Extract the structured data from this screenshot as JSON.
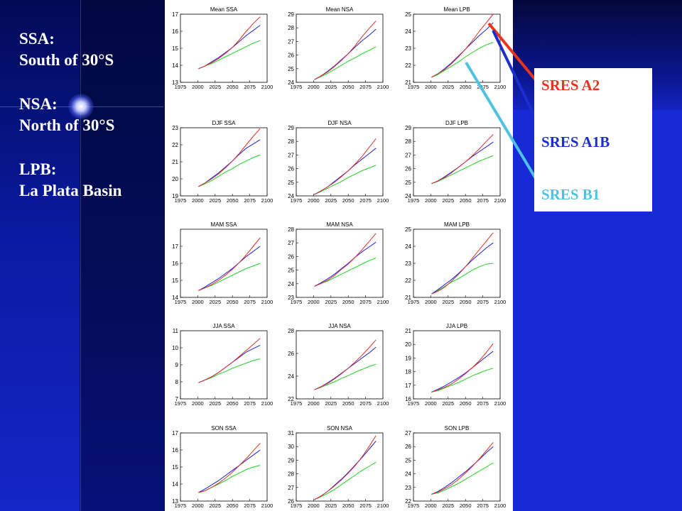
{
  "definitions": [
    {
      "code": "SSA:",
      "meaning": "South of 30°S"
    },
    {
      "code": "NSA:",
      "meaning": "North of 30°S"
    },
    {
      "code": "LPB:",
      "meaning": "La Plata Basin"
    }
  ],
  "legend": [
    {
      "label": "SRES A2",
      "color": "#e8341c"
    },
    {
      "label": "SRES A1B",
      "color": "#1b2fd0"
    },
    {
      "label": "SRES B1",
      "color": "#4ec3e0"
    }
  ],
  "chart_data": {
    "type": "line",
    "x_ticks": [
      1975,
      2000,
      2025,
      2050,
      2075,
      2100
    ],
    "x_tick_labels": [
      "1975",
      "2000",
      "2025",
      "2050",
      "2075",
      "2100"
    ],
    "x": [
      2001,
      2010,
      2020,
      2030,
      2040,
      2050,
      2060,
      2070,
      2080,
      2090
    ],
    "series_colors": {
      "SRES A2": "#e03030",
      "SRES A1B": "#2020e0",
      "SRES B1": "#20d020"
    },
    "panels": [
      {
        "title": "Mean SSA",
        "ylim": [
          13,
          17
        ],
        "yticks": [
          13,
          14,
          15,
          16,
          17
        ],
        "series": [
          {
            "values": [
              13.8,
              13.95,
              14.15,
              14.4,
              14.7,
              15.05,
              15.5,
              16.0,
              16.45,
              16.85
            ]
          },
          {
            "values": [
              13.8,
              13.95,
              14.2,
              14.45,
              14.75,
              15.05,
              15.4,
              15.75,
              16.05,
              16.35
            ]
          },
          {
            "values": [
              13.8,
              13.95,
              14.1,
              14.3,
              14.5,
              14.7,
              14.9,
              15.1,
              15.3,
              15.45
            ]
          }
        ]
      },
      {
        "title": "Mean NSA",
        "ylim": [
          24,
          29
        ],
        "yticks": [
          24,
          25,
          26,
          27,
          28,
          29
        ],
        "series": [
          {
            "values": [
              24.2,
              24.45,
              24.75,
              25.15,
              25.6,
              26.1,
              26.7,
              27.35,
              27.95,
              28.5
            ]
          },
          {
            "values": [
              24.2,
              24.45,
              24.8,
              25.2,
              25.65,
              26.1,
              26.6,
              27.05,
              27.45,
              27.9
            ]
          },
          {
            "values": [
              24.2,
              24.4,
              24.65,
              24.95,
              25.25,
              25.55,
              25.8,
              26.1,
              26.35,
              26.6
            ]
          }
        ]
      },
      {
        "title": "Mean LPB",
        "ylim": [
          21,
          25
        ],
        "yticks": [
          21,
          22,
          23,
          24,
          25
        ],
        "series": [
          {
            "values": [
              21.3,
              21.5,
              21.75,
              22.1,
              22.5,
              22.95,
              23.45,
              24.0,
              24.5,
              25.0
            ]
          },
          {
            "values": [
              21.3,
              21.5,
              21.8,
              22.15,
              22.55,
              22.95,
              23.35,
              23.75,
              24.1,
              24.5
            ]
          },
          {
            "values": [
              21.3,
              21.45,
              21.7,
              21.95,
              22.2,
              22.5,
              22.75,
              23.0,
              23.2,
              23.35
            ]
          }
        ]
      },
      {
        "title": "DJF SSA",
        "ylim": [
          19,
          23
        ],
        "yticks": [
          19,
          20,
          21,
          22,
          23
        ],
        "series": [
          {
            "values": [
              19.55,
              19.75,
              20.0,
              20.3,
              20.65,
              21.05,
              21.5,
              22.0,
              22.5,
              22.95
            ]
          },
          {
            "values": [
              19.55,
              19.75,
              20.05,
              20.35,
              20.7,
              21.05,
              21.45,
              21.8,
              22.05,
              22.3
            ]
          },
          {
            "values": [
              19.55,
              19.7,
              19.9,
              20.15,
              20.4,
              20.6,
              20.85,
              21.05,
              21.25,
              21.4
            ]
          }
        ]
      },
      {
        "title": "DJF NSA",
        "ylim": [
          24,
          29
        ],
        "yticks": [
          24,
          25,
          26,
          27,
          28,
          29
        ],
        "series": [
          {
            "values": [
              24.1,
              24.35,
              24.65,
              25.0,
              25.4,
              25.85,
              26.35,
              26.9,
              27.55,
              28.2
            ]
          },
          {
            "values": [
              24.1,
              24.35,
              24.65,
              25.05,
              25.45,
              25.85,
              26.3,
              26.7,
              27.1,
              27.5
            ]
          },
          {
            "values": [
              24.1,
              24.3,
              24.55,
              24.8,
              25.05,
              25.35,
              25.6,
              25.85,
              26.05,
              26.25
            ]
          }
        ]
      },
      {
        "title": "DJF LPB",
        "ylim": [
          24,
          29
        ],
        "yticks": [
          24,
          25,
          26,
          27,
          28,
          29
        ],
        "series": [
          {
            "values": [
              24.9,
              25.1,
              25.35,
              25.7,
              26.1,
              26.5,
              26.95,
              27.45,
              28.0,
              28.5
            ]
          },
          {
            "values": [
              24.9,
              25.1,
              25.4,
              25.75,
              26.1,
              26.5,
              26.9,
              27.25,
              27.6,
              27.95
            ]
          },
          {
            "values": [
              24.9,
              25.05,
              25.3,
              25.55,
              25.8,
              26.05,
              26.3,
              26.55,
              26.75,
              26.95
            ]
          }
        ]
      },
      {
        "title": "MAM SSA",
        "ylim": [
          14,
          18
        ],
        "yticks": [
          14,
          15,
          16,
          17
        ],
        "series": [
          {
            "values": [
              14.4,
              14.55,
              14.75,
              15.0,
              15.3,
              15.65,
              16.05,
              16.5,
              17.0,
              17.5
            ]
          },
          {
            "values": [
              14.4,
              14.6,
              14.85,
              15.1,
              15.4,
              15.7,
              16.05,
              16.4,
              16.7,
              17.0
            ]
          },
          {
            "values": [
              14.4,
              14.55,
              14.7,
              14.9,
              15.1,
              15.3,
              15.5,
              15.7,
              15.85,
              16.0
            ]
          }
        ]
      },
      {
        "title": "MAM NSA",
        "ylim": [
          23,
          28
        ],
        "yticks": [
          23,
          24,
          25,
          26,
          27,
          28
        ],
        "series": [
          {
            "values": [
              23.8,
              24.0,
              24.25,
              24.6,
              25.05,
              25.45,
              25.95,
              26.5,
              27.1,
              27.7
            ]
          },
          {
            "values": [
              23.8,
              24.05,
              24.35,
              24.7,
              25.1,
              25.5,
              25.95,
              26.35,
              26.7,
              27.05
            ]
          },
          {
            "values": [
              23.8,
              24.0,
              24.2,
              24.45,
              24.7,
              24.95,
              25.2,
              25.45,
              25.7,
              25.9
            ]
          }
        ]
      },
      {
        "title": "MAM LPB",
        "ylim": [
          21,
          25
        ],
        "yticks": [
          21,
          22,
          23,
          24,
          25
        ],
        "series": [
          {
            "values": [
              21.2,
              21.35,
              21.6,
              21.95,
              22.35,
              22.8,
              23.3,
              23.8,
              24.3,
              24.8
            ]
          },
          {
            "values": [
              21.2,
              21.45,
              21.75,
              22.05,
              22.4,
              22.8,
              23.2,
              23.55,
              23.9,
              24.2
            ]
          },
          {
            "values": [
              21.2,
              21.4,
              21.65,
              21.9,
              22.1,
              22.35,
              22.6,
              22.8,
              22.95,
              23.0
            ]
          }
        ]
      },
      {
        "title": "JJA SSA",
        "ylim": [
          7,
          11
        ],
        "yticks": [
          7,
          8,
          9,
          10,
          11
        ],
        "series": [
          {
            "values": [
              7.95,
              8.1,
              8.3,
              8.55,
              8.85,
              9.15,
              9.5,
              9.85,
              10.2,
              10.55
            ]
          },
          {
            "values": [
              7.95,
              8.1,
              8.3,
              8.55,
              8.85,
              9.15,
              9.45,
              9.75,
              9.95,
              10.15
            ]
          },
          {
            "values": [
              7.95,
              8.1,
              8.25,
              8.45,
              8.6,
              8.8,
              8.95,
              9.1,
              9.25,
              9.35
            ]
          }
        ]
      },
      {
        "title": "JJA NSA",
        "ylim": [
          22,
          28
        ],
        "yticks": [
          22,
          24,
          26,
          28
        ],
        "series": [
          {
            "values": [
              22.8,
              23.05,
              23.35,
              23.75,
              24.2,
              24.7,
              25.25,
              25.85,
              26.5,
              27.2
            ]
          },
          {
            "values": [
              22.8,
              23.05,
              23.4,
              23.8,
              24.25,
              24.7,
              25.15,
              25.6,
              26.05,
              26.55
            ]
          },
          {
            "values": [
              22.8,
              23.0,
              23.25,
              23.5,
              23.8,
              24.05,
              24.35,
              24.6,
              24.85,
              25.05
            ]
          }
        ]
      },
      {
        "title": "JJA LPB",
        "ylim": [
          16,
          21
        ],
        "yticks": [
          16,
          17,
          18,
          19,
          20,
          21
        ],
        "series": [
          {
            "values": [
              16.5,
              16.65,
              16.85,
              17.1,
              17.45,
              17.85,
              18.3,
              18.8,
              19.4,
              20.05
            ]
          },
          {
            "values": [
              16.5,
              16.7,
              16.95,
              17.25,
              17.55,
              17.9,
              18.3,
              18.7,
              19.1,
              19.5
            ]
          },
          {
            "values": [
              16.5,
              16.6,
              16.8,
              17.0,
              17.2,
              17.45,
              17.7,
              17.9,
              18.1,
              18.25
            ]
          }
        ]
      },
      {
        "title": "SON SSA",
        "ylim": [
          13,
          17
        ],
        "yticks": [
          13,
          14,
          15,
          16,
          17
        ],
        "series": [
          {
            "values": [
              13.5,
              13.6,
              13.8,
              14.05,
              14.35,
              14.7,
              15.1,
              15.5,
              15.95,
              16.4
            ]
          },
          {
            "values": [
              13.5,
              13.7,
              13.95,
              14.2,
              14.5,
              14.8,
              15.1,
              15.4,
              15.7,
              16.0
            ]
          },
          {
            "values": [
              13.5,
              13.6,
              13.8,
              14.0,
              14.2,
              14.45,
              14.65,
              14.85,
              15.0,
              15.1
            ]
          }
        ]
      },
      {
        "title": "SON NSA",
        "ylim": [
          26,
          31
        ],
        "yticks": [
          26,
          27,
          28,
          29,
          30,
          31
        ],
        "series": [
          {
            "values": [
              26.1,
              26.35,
              26.7,
              27.1,
              27.55,
              28.05,
              28.6,
              29.25,
              30.0,
              30.8
            ]
          },
          {
            "values": [
              26.1,
              26.35,
              26.7,
              27.15,
              27.6,
              28.1,
              28.65,
              29.2,
              29.8,
              30.4
            ]
          },
          {
            "values": [
              26.1,
              26.3,
              26.55,
              26.85,
              27.2,
              27.55,
              27.9,
              28.25,
              28.55,
              28.85
            ]
          }
        ]
      },
      {
        "title": "SON LPB",
        "ylim": [
          22,
          27
        ],
        "yticks": [
          22,
          23,
          24,
          25,
          26,
          27
        ],
        "series": [
          {
            "values": [
              22.5,
              22.65,
              22.9,
              23.2,
              23.6,
              24.05,
              24.55,
              25.1,
              25.7,
              26.3
            ]
          },
          {
            "values": [
              22.5,
              22.7,
              23.0,
              23.35,
              23.75,
              24.15,
              24.6,
              25.05,
              25.55,
              26.0
            ]
          },
          {
            "values": [
              22.5,
              22.6,
              22.8,
              23.05,
              23.3,
              23.6,
              23.9,
              24.2,
              24.5,
              24.8
            ]
          }
        ]
      }
    ]
  }
}
